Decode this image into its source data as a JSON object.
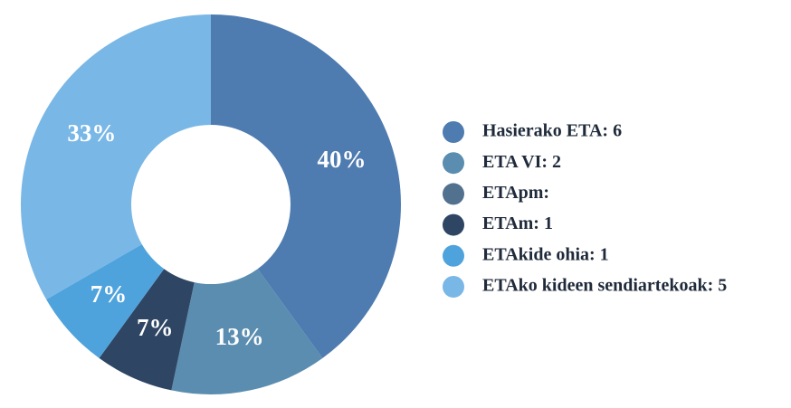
{
  "chart_data": {
    "type": "donut",
    "categories": [
      "Hasierako ETA: 6",
      "ETA VI: 2",
      "ETApm:",
      "ETAm: 1",
      "ETAkide ohia: 1",
      "ETAko kideen sendiartekoak: 5"
    ],
    "values": [
      40,
      13.33,
      0,
      6.67,
      6.67,
      33.33
    ],
    "value_labels": [
      "40%",
      "13%",
      null,
      "7%",
      "7%",
      "33%"
    ],
    "colors": [
      "#4e7bb0",
      "#5a8daf",
      "#52718f",
      "#2e4563",
      "#4fa3dc",
      "#79b7e6"
    ],
    "legend": "right"
  }
}
